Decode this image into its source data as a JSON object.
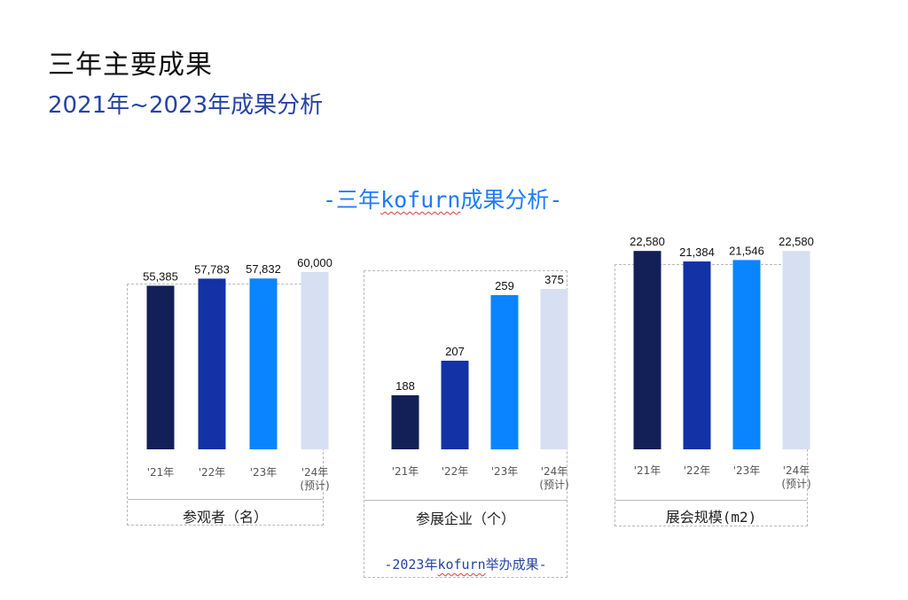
{
  "header": {
    "title": "三年主要成果",
    "subtitle": "2021年~2023年成果分析"
  },
  "section": {
    "prefix": "-三年",
    "brand": "kofurn",
    "suffix": "成果分析-"
  },
  "palette": [
    "#132057",
    "#1232a6",
    "#0a84ff",
    "#d6e0f2"
  ],
  "chart_data": [
    {
      "type": "bar",
      "title": "参观者（名）",
      "categories": [
        "'21年",
        "'22年",
        "'23年",
        "'24年"
      ],
      "category_notes": [
        "",
        "",
        "",
        "(预计)"
      ],
      "values": [
        55385,
        57783,
        57832,
        60000
      ],
      "value_labels": [
        "55,385",
        "57,783",
        "57,832",
        "60,000"
      ],
      "ylim": [
        0,
        75000
      ],
      "grid": false
    },
    {
      "type": "bar",
      "title": "参展企业（个）",
      "categories": [
        "'21年",
        "'22年",
        "'23年",
        "'24年"
      ],
      "category_notes": [
        "",
        "",
        "",
        "(预计)"
      ],
      "values": [
        188,
        207,
        259,
        375
      ],
      "display_levels": [
        61,
        100,
        174,
        181
      ],
      "value_labels": [
        "188",
        "207",
        "259",
        "375"
      ],
      "ylim": [
        0,
        200
      ],
      "grid": false
    },
    {
      "type": "bar",
      "title": "展会规模(m2)",
      "categories": [
        "'21年",
        "'22年",
        "'23年",
        "'24年"
      ],
      "category_notes": [
        "",
        "",
        "",
        "(预计)"
      ],
      "values": [
        22580,
        21384,
        21546,
        22580
      ],
      "value_labels": [
        "22,580",
        "21,384",
        "21,546",
        "22,580"
      ],
      "ylim": [
        0,
        23000
      ],
      "grid": false
    }
  ],
  "footer": {
    "prefix": "-2023年",
    "brand": "kofurn",
    "suffix": "举办成果-"
  }
}
